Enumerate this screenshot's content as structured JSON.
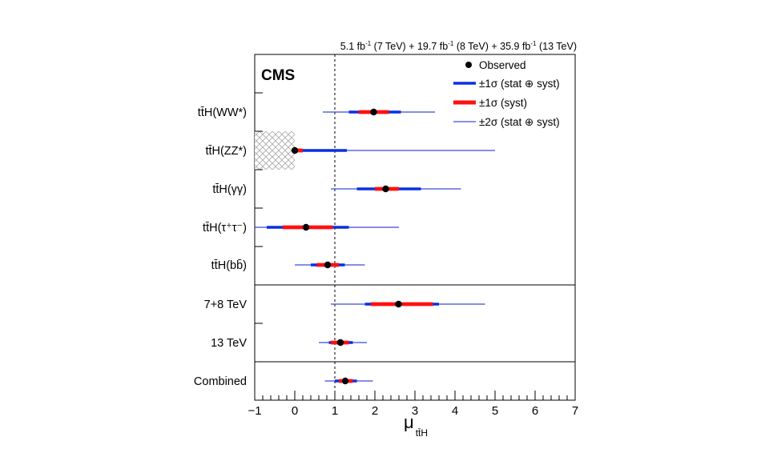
{
  "chart_data": {
    "type": "forest",
    "luminosity": {
      "parts": [
        {
          "value": "5.1 fb",
          "sup": "-1",
          "energy": " (7 TeV) + "
        },
        {
          "value": "19.7 fb",
          "sup": "-1",
          "energy": " (8 TeV) + "
        },
        {
          "value": "35.9 fb",
          "sup": "-1",
          "energy": " (13 TeV)"
        }
      ]
    },
    "experiment_label": "CMS",
    "xlabel": "μ",
    "xlabel_subscript": "tt̄H",
    "xlim": [
      -1,
      7
    ],
    "xticks": [
      -1,
      0,
      1,
      2,
      3,
      4,
      5,
      6,
      7
    ],
    "reference_line": 1,
    "excluded_region": {
      "x_from": -1,
      "x_to": 0,
      "category": "ttH(ZZ*)"
    },
    "legend": {
      "position": "top-right",
      "entries": [
        {
          "label": "Observed",
          "style": "marker",
          "color": "#000000"
        },
        {
          "label": "±1σ (stat ⊕ syst)",
          "style": "thick-line",
          "color": "#0a2fe0"
        },
        {
          "label": "±1σ (syst)",
          "style": "thick-line",
          "color": "#ff1010"
        },
        {
          "label": "±2σ (stat ⊕ syst)",
          "style": "thin-line",
          "color": "#3a4ad8"
        }
      ]
    },
    "categories": [
      {
        "label": "tt̄H(WW*)",
        "observed": 1.97,
        "one_sigma": [
          1.35,
          2.65
        ],
        "syst": [
          1.6,
          2.35
        ],
        "two_sigma": [
          0.7,
          3.5
        ],
        "group": "channels"
      },
      {
        "label": "tt̄H(ZZ*)",
        "observed": 0.0,
        "one_sigma": [
          0.0,
          1.3
        ],
        "syst": [
          0.0,
          0.2
        ],
        "two_sigma": [
          0.0,
          5.0
        ],
        "group": "channels"
      },
      {
        "label": "tt̄H(γγ)",
        "observed": 2.27,
        "one_sigma": [
          1.55,
          3.15
        ],
        "syst": [
          2.0,
          2.6
        ],
        "two_sigma": [
          0.9,
          4.15
        ],
        "group": "channels"
      },
      {
        "label": "tt̄H(τ⁺τ⁻)",
        "observed": 0.28,
        "one_sigma": [
          -0.7,
          1.35
        ],
        "syst": [
          -0.3,
          0.95
        ],
        "two_sigma": [
          -1.0,
          2.6
        ],
        "group": "channels"
      },
      {
        "label": "tt̄H(bb̄)",
        "observed": 0.82,
        "one_sigma": [
          0.4,
          1.25
        ],
        "syst": [
          0.55,
          1.1
        ],
        "two_sigma": [
          0.0,
          1.75
        ],
        "group": "channels"
      },
      {
        "label": "7+8 TeV",
        "observed": 2.59,
        "one_sigma": [
          1.75,
          3.6
        ],
        "syst": [
          1.9,
          3.45
        ],
        "two_sigma": [
          0.9,
          4.75
        ],
        "group": "energies"
      },
      {
        "label": "13 TeV",
        "observed": 1.14,
        "one_sigma": [
          0.85,
          1.45
        ],
        "syst": [
          0.9,
          1.35
        ],
        "two_sigma": [
          0.6,
          1.8
        ],
        "group": "energies"
      },
      {
        "label": "Combined",
        "observed": 1.26,
        "one_sigma": [
          1.0,
          1.55
        ],
        "syst": [
          1.1,
          1.45
        ],
        "two_sigma": [
          0.75,
          1.95
        ],
        "group": "combined"
      }
    ],
    "colors": {
      "one_sigma": "#0a2fe0",
      "syst": "#ff1010",
      "two_sigma": "#3a4ad8",
      "observed": "#000000",
      "hatch": "#9a9a9a"
    }
  }
}
